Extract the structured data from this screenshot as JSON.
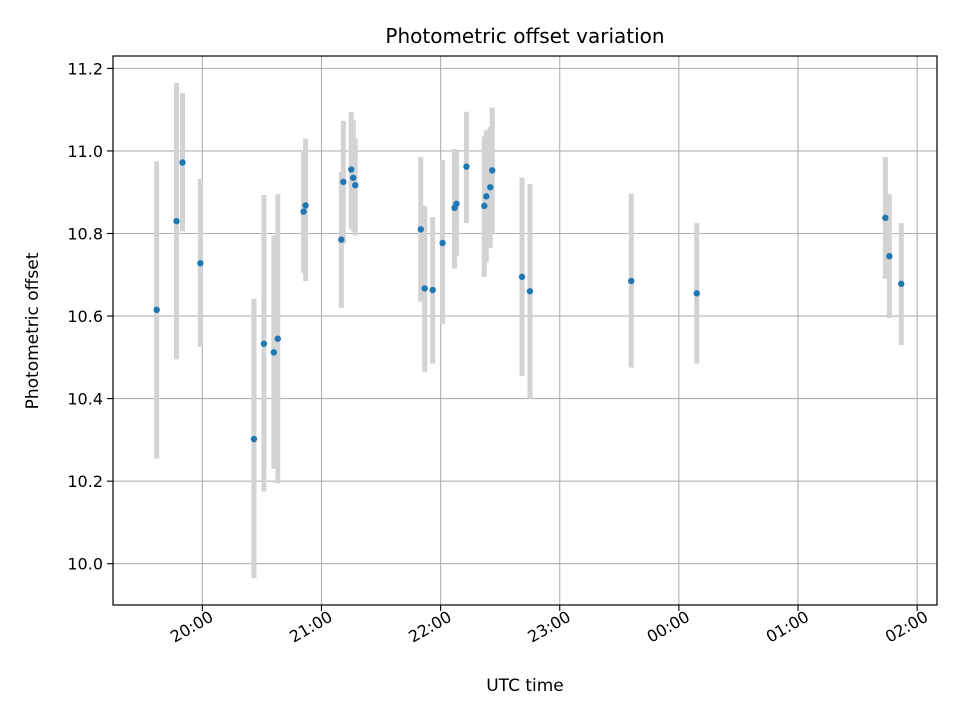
{
  "chart_data": {
    "type": "scatter",
    "title": "Photometric offset variation",
    "xlabel": "UTC time",
    "ylabel": "Photometric offset",
    "x_axis": {
      "kind": "time",
      "range": [
        "19:15",
        "02:10"
      ],
      "ticks": [
        "20:00",
        "21:00",
        "22:00",
        "23:00",
        "00:00",
        "01:00",
        "02:00"
      ]
    },
    "y_axis": {
      "range": [
        9.9,
        11.23
      ],
      "ticks": [
        "10.0",
        "10.2",
        "10.4",
        "10.6",
        "10.8",
        "11.0",
        "11.2"
      ]
    },
    "grid": true,
    "colors": {
      "marker": "#1f77b4",
      "errorbar": "#d3d3d3",
      "grid": "#b0b0b0"
    },
    "points": [
      {
        "t": "19:37",
        "y": 10.615,
        "lo": 10.255,
        "hi": 10.975
      },
      {
        "t": "19:47",
        "y": 10.83,
        "lo": 10.495,
        "hi": 11.165
      },
      {
        "t": "19:50",
        "y": 10.972,
        "lo": 10.805,
        "hi": 11.14
      },
      {
        "t": "19:59",
        "y": 10.728,
        "lo": 10.525,
        "hi": 10.932
      },
      {
        "t": "20:26",
        "y": 10.302,
        "lo": 9.965,
        "hi": 10.642
      },
      {
        "t": "20:31",
        "y": 10.533,
        "lo": 10.175,
        "hi": 10.893
      },
      {
        "t": "20:36",
        "y": 10.512,
        "lo": 10.23,
        "hi": 10.795
      },
      {
        "t": "20:38",
        "y": 10.545,
        "lo": 10.195,
        "hi": 10.895
      },
      {
        "t": "20:51",
        "y": 10.853,
        "lo": 10.705,
        "hi": 11.0
      },
      {
        "t": "20:52",
        "y": 10.868,
        "lo": 10.685,
        "hi": 11.03
      },
      {
        "t": "21:10",
        "y": 10.785,
        "lo": 10.62,
        "hi": 10.95
      },
      {
        "t": "21:11",
        "y": 10.925,
        "lo": 10.775,
        "hi": 11.073
      },
      {
        "t": "21:15",
        "y": 10.955,
        "lo": 10.81,
        "hi": 11.095
      },
      {
        "t": "21:16",
        "y": 10.935,
        "lo": 10.805,
        "hi": 11.075
      },
      {
        "t": "21:17",
        "y": 10.917,
        "lo": 10.795,
        "hi": 11.03
      },
      {
        "t": "21:50",
        "y": 10.81,
        "lo": 10.635,
        "hi": 10.985
      },
      {
        "t": "21:52",
        "y": 10.667,
        "lo": 10.465,
        "hi": 10.867
      },
      {
        "t": "21:56",
        "y": 10.663,
        "lo": 10.485,
        "hi": 10.84
      },
      {
        "t": "22:01",
        "y": 10.777,
        "lo": 10.58,
        "hi": 10.978
      },
      {
        "t": "22:07",
        "y": 10.862,
        "lo": 10.715,
        "hi": 11.005
      },
      {
        "t": "22:08",
        "y": 10.872,
        "lo": 10.745,
        "hi": 11.0
      },
      {
        "t": "22:13",
        "y": 10.962,
        "lo": 10.825,
        "hi": 11.095
      },
      {
        "t": "22:22",
        "y": 10.867,
        "lo": 10.695,
        "hi": 11.035
      },
      {
        "t": "22:23",
        "y": 10.89,
        "lo": 10.73,
        "hi": 11.05
      },
      {
        "t": "22:25",
        "y": 10.912,
        "lo": 10.765,
        "hi": 11.058
      },
      {
        "t": "22:26",
        "y": 10.953,
        "lo": 10.8,
        "hi": 11.105
      },
      {
        "t": "22:41",
        "y": 10.695,
        "lo": 10.455,
        "hi": 10.935
      },
      {
        "t": "22:45",
        "y": 10.66,
        "lo": 10.4,
        "hi": 10.92
      },
      {
        "t": "23:36",
        "y": 10.685,
        "lo": 10.475,
        "hi": 10.897
      },
      {
        "t": "00:09",
        "y": 10.655,
        "lo": 10.485,
        "hi": 10.825
      },
      {
        "t": "01:44",
        "y": 10.838,
        "lo": 10.69,
        "hi": 10.985
      },
      {
        "t": "01:46",
        "y": 10.745,
        "lo": 10.595,
        "hi": 10.895
      },
      {
        "t": "01:52",
        "y": 10.678,
        "lo": 10.53,
        "hi": 10.825
      }
    ]
  }
}
